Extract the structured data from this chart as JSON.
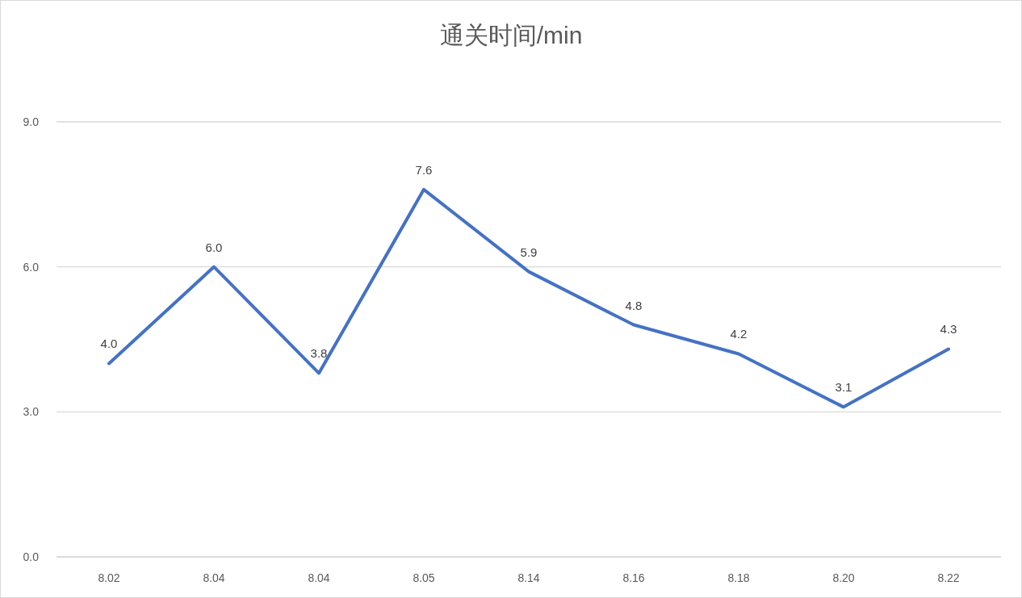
{
  "chart_data": {
    "type": "line",
    "title": "通关时间/min",
    "categories": [
      "8.02",
      "8.04",
      "8.04",
      "8.05",
      "8.14",
      "8.16",
      "8.18",
      "8.20",
      "8.22"
    ],
    "series": [
      {
        "color": "#4472c4",
        "values": [
          4.0,
          6.0,
          3.8,
          7.6,
          5.9,
          4.8,
          4.2,
          3.1,
          4.3
        ],
        "value_labels": [
          "4.0",
          "6.0",
          "3.8",
          "7.6",
          "5.9",
          "4.8",
          "4.2",
          "3.1",
          "4.3"
        ]
      }
    ],
    "ylim": [
      0,
      9
    ],
    "yticks": [
      {
        "value": 0,
        "label": "0.0"
      },
      {
        "value": 3,
        "label": "3.0"
      },
      {
        "value": 6,
        "label": "6.0"
      },
      {
        "value": 9,
        "label": "9.0"
      }
    ],
    "grid": "y",
    "marker": "none",
    "line_style": "solid"
  }
}
